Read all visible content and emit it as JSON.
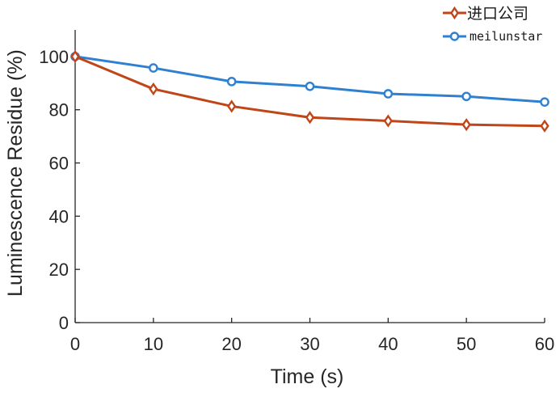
{
  "chart_data": {
    "type": "line",
    "title": "",
    "xlabel": "Time (s)",
    "ylabel": "Luminescence Residue (%)",
    "x": [
      0,
      10,
      20,
      30,
      40,
      50,
      60
    ],
    "xlim": [
      0,
      60
    ],
    "ylim": [
      0,
      110
    ],
    "xticks": [
      "0",
      "10",
      "20",
      "30",
      "40",
      "50",
      "60"
    ],
    "yticks": [
      "0",
      "20",
      "40",
      "60",
      "80",
      "100"
    ],
    "grid": false,
    "legend_position": "top-right",
    "series": [
      {
        "name": "进口公司",
        "color": "#c0461a",
        "marker": "diamond-open",
        "values": [
          100,
          87.8,
          81.3,
          77.1,
          75.8,
          74.4,
          73.9
        ]
      },
      {
        "name": "meilunstar",
        "color": "#2f80d0",
        "marker": "circle-open",
        "values": [
          100,
          95.7,
          90.6,
          88.8,
          86.0,
          85.0,
          82.9
        ]
      }
    ]
  }
}
